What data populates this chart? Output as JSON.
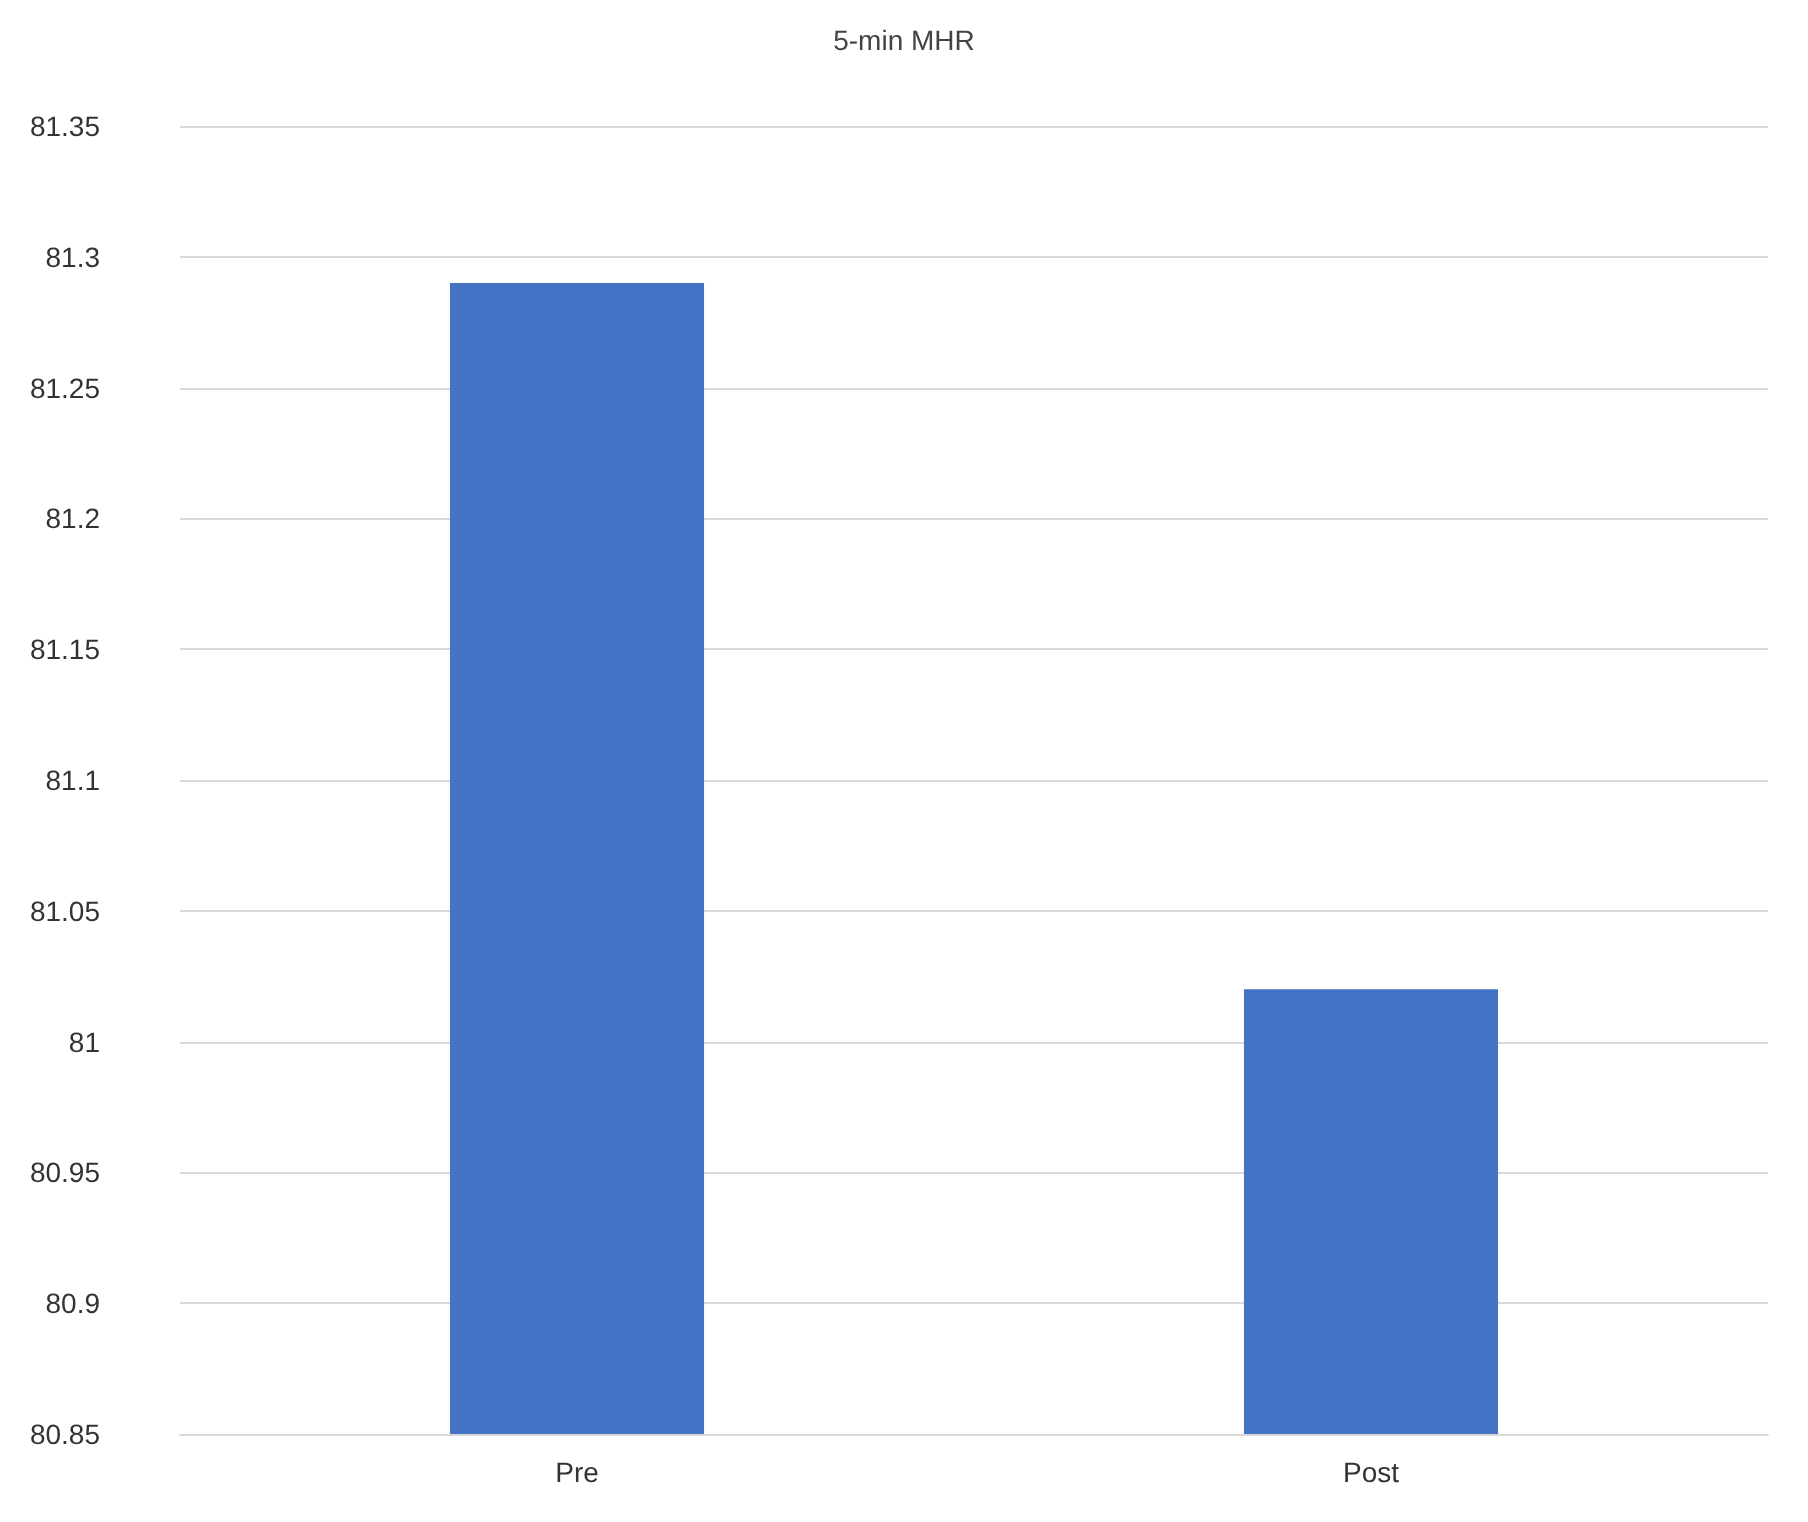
{
  "chart_data": {
    "type": "bar",
    "title": "5-min MHR",
    "categories": [
      "Pre",
      "Post"
    ],
    "values": [
      81.29,
      81.02
    ],
    "color": "#4472c4",
    "ylim": [
      80.85,
      81.35
    ],
    "yticks": [
      80.85,
      80.9,
      80.95,
      81,
      81.05,
      81.1,
      81.15,
      81.2,
      81.25,
      81.3,
      81.35
    ],
    "grid": "y"
  }
}
